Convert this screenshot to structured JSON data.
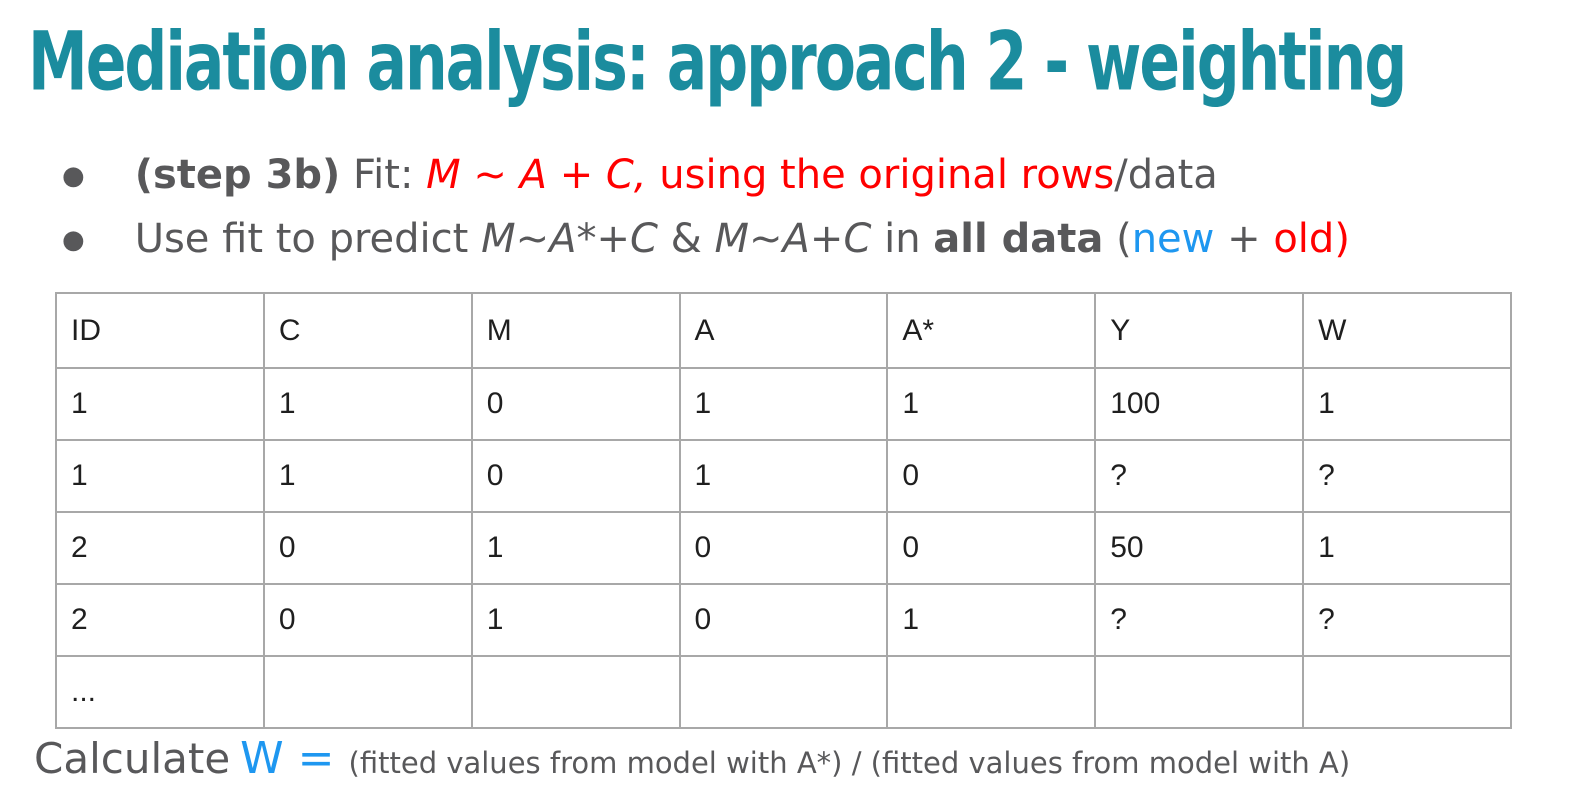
{
  "slide": {
    "title": "Mediation analysis: approach 2 - weighting",
    "colors": {
      "title_teal": "#1b8c9e",
      "body_gray": "#58585a",
      "highlight_red": "#ff0000",
      "highlight_blue": "#1e97f0",
      "table_border_gray": "#a8a8a8",
      "table_text": "#1f1f1f",
      "background": "#ffffff"
    },
    "bullet_glyph": "●",
    "bullets": {
      "b1": {
        "step_bold": "(step 3b)",
        "fit": " Fit: ",
        "formula_red": "M ~ A + C,",
        "red_rest": " using the original rows",
        "suffix_gray": "/data"
      },
      "b2": {
        "lead": "Use fit to predict ",
        "formula1": "M~A*+C",
        "amp": " & ",
        "formula2": "M~A+C",
        "in_word": " in ",
        "all_data_bold": "all data",
        "paren_open": " (",
        "new_blue": "new",
        "plus": " + ",
        "old_red": "old",
        "paren_close": ")"
      }
    },
    "table": {
      "headers": [
        "ID",
        "C",
        "M",
        "A",
        "A*",
        "Y",
        "W"
      ],
      "rows": [
        [
          "1",
          "1",
          "0",
          "1",
          "1",
          "100",
          "1"
        ],
        [
          "1",
          "1",
          "0",
          "1",
          "0",
          "?",
          "?"
        ],
        [
          "2",
          "0",
          "1",
          "0",
          "0",
          "50",
          "1"
        ],
        [
          "2",
          "0",
          "1",
          "0",
          "1",
          "?",
          "?"
        ],
        [
          "...",
          "",
          "",
          "",
          "",
          "",
          ""
        ]
      ]
    },
    "footer": {
      "calculate": "Calculate",
      "w_equals": "W =",
      "detail": "(fitted values from model with A*) / (fitted values from model with A)"
    }
  }
}
